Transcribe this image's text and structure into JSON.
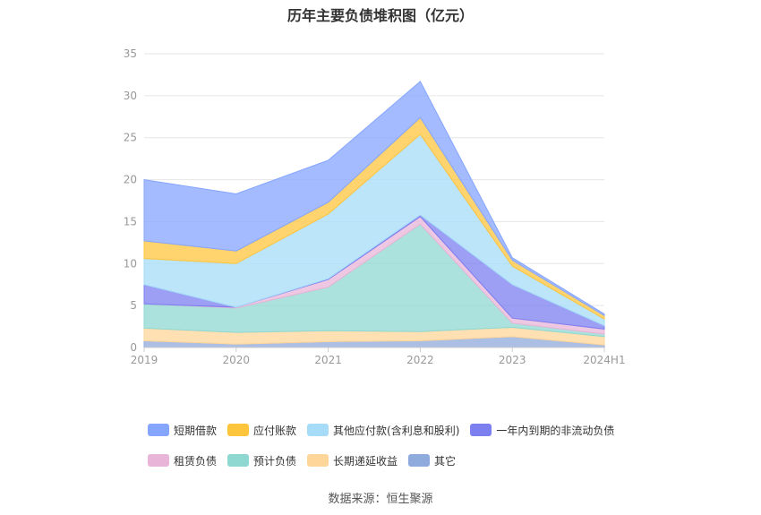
{
  "chart_data": {
    "type": "area",
    "stacked": true,
    "title": "历年主要负债堆积图（亿元）",
    "categories": [
      "2019",
      "2020",
      "2021",
      "2022",
      "2023",
      "2024H1"
    ],
    "ylim": [
      0,
      35
    ],
    "yticks": [
      0,
      5,
      10,
      15,
      20,
      25,
      30,
      35
    ],
    "grid": true,
    "legend_position": "bottom",
    "series": [
      {
        "name": "其它",
        "color": "#8faadc",
        "values": [
          0.8,
          0.4,
          0.7,
          0.8,
          1.3,
          0.3
        ]
      },
      {
        "name": "长期递延收益",
        "color": "#ffd699",
        "values": [
          1.5,
          1.4,
          1.3,
          1.1,
          1.1,
          1.0
        ]
      },
      {
        "name": "预计负债",
        "color": "#8fd8d2",
        "values": [
          2.9,
          2.9,
          5.2,
          12.8,
          0.5,
          0.3
        ]
      },
      {
        "name": "租赁负债",
        "color": "#e8b4d8",
        "values": [
          0.0,
          0.1,
          0.9,
          0.9,
          0.6,
          0.6
        ]
      },
      {
        "name": "一年内到期的非流动负债",
        "color": "#7b7ff0",
        "values": [
          2.3,
          0.0,
          0.1,
          0.2,
          4.0,
          0.4
        ]
      },
      {
        "name": "其他应付款(含利息和股利)",
        "color": "#a6dcf8",
        "values": [
          3.1,
          5.2,
          7.7,
          9.6,
          2.2,
          0.8
        ]
      },
      {
        "name": "应付账款",
        "color": "#ffc53d",
        "values": [
          2.1,
          1.5,
          1.4,
          2.0,
          0.7,
          0.4
        ]
      },
      {
        "name": "短期借款",
        "color": "#85a5ff",
        "values": [
          7.3,
          6.8,
          5.0,
          4.3,
          0.3,
          0.2
        ]
      }
    ]
  },
  "legend": [
    {
      "label": "短期借款",
      "color": "#85a5ff"
    },
    {
      "label": "应付账款",
      "color": "#ffc53d"
    },
    {
      "label": "其他应付款(含利息和股利)",
      "color": "#a6dcf8"
    },
    {
      "label": "一年内到期的非流动负债",
      "color": "#7b7ff0"
    },
    {
      "label": "租赁负债",
      "color": "#e8b4d8"
    },
    {
      "label": "预计负债",
      "color": "#8fd8d2"
    },
    {
      "label": "长期递延收益",
      "color": "#ffd699"
    },
    {
      "label": "其它",
      "color": "#8faadc"
    }
  ],
  "source": "数据来源：恒生聚源"
}
